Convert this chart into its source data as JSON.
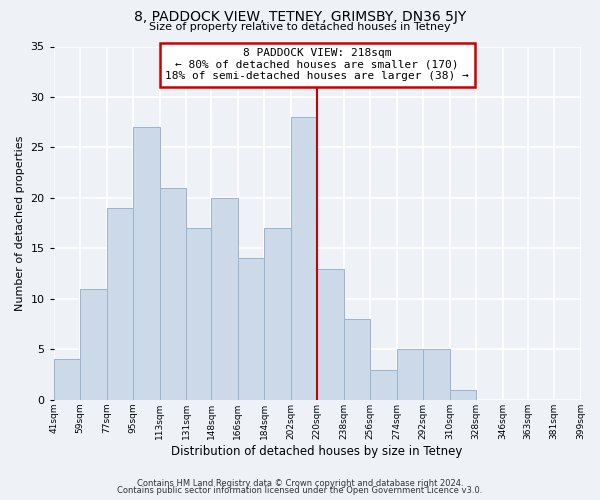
{
  "title": "8, PADDOCK VIEW, TETNEY, GRIMSBY, DN36 5JY",
  "subtitle": "Size of property relative to detached houses in Tetney",
  "xlabel": "Distribution of detached houses by size in Tetney",
  "ylabel": "Number of detached properties",
  "bin_labels": [
    "41sqm",
    "59sqm",
    "77sqm",
    "95sqm",
    "113sqm",
    "131sqm",
    "148sqm",
    "166sqm",
    "184sqm",
    "202sqm",
    "220sqm",
    "238sqm",
    "256sqm",
    "274sqm",
    "292sqm",
    "310sqm",
    "328sqm",
    "346sqm",
    "363sqm",
    "381sqm",
    "399sqm"
  ],
  "bin_edges": [
    41,
    59,
    77,
    95,
    113,
    131,
    148,
    166,
    184,
    202,
    220,
    238,
    256,
    274,
    292,
    310,
    328,
    346,
    363,
    381,
    399
  ],
  "counts": [
    4,
    11,
    19,
    27,
    21,
    17,
    20,
    14,
    17,
    28,
    13,
    8,
    3,
    5,
    5,
    1,
    0,
    0,
    0,
    0
  ],
  "bar_color": "#ccd9e8",
  "bar_edge_color": "#9ab4cc",
  "vline_x": 220,
  "vline_color": "#cc0000",
  "annotation_title": "8 PADDOCK VIEW: 218sqm",
  "annotation_line1": "← 80% of detached houses are smaller (170)",
  "annotation_line2": "18% of semi-detached houses are larger (38) →",
  "annotation_box_color": "#ffffff",
  "annotation_box_edge": "#cc0000",
  "ylim": [
    0,
    35
  ],
  "yticks": [
    0,
    5,
    10,
    15,
    20,
    25,
    30,
    35
  ],
  "footer1": "Contains HM Land Registry data © Crown copyright and database right 2024.",
  "footer2": "Contains public sector information licensed under the Open Government Licence v3.0.",
  "background_color": "#eef2f7",
  "grid_color": "#ffffff"
}
